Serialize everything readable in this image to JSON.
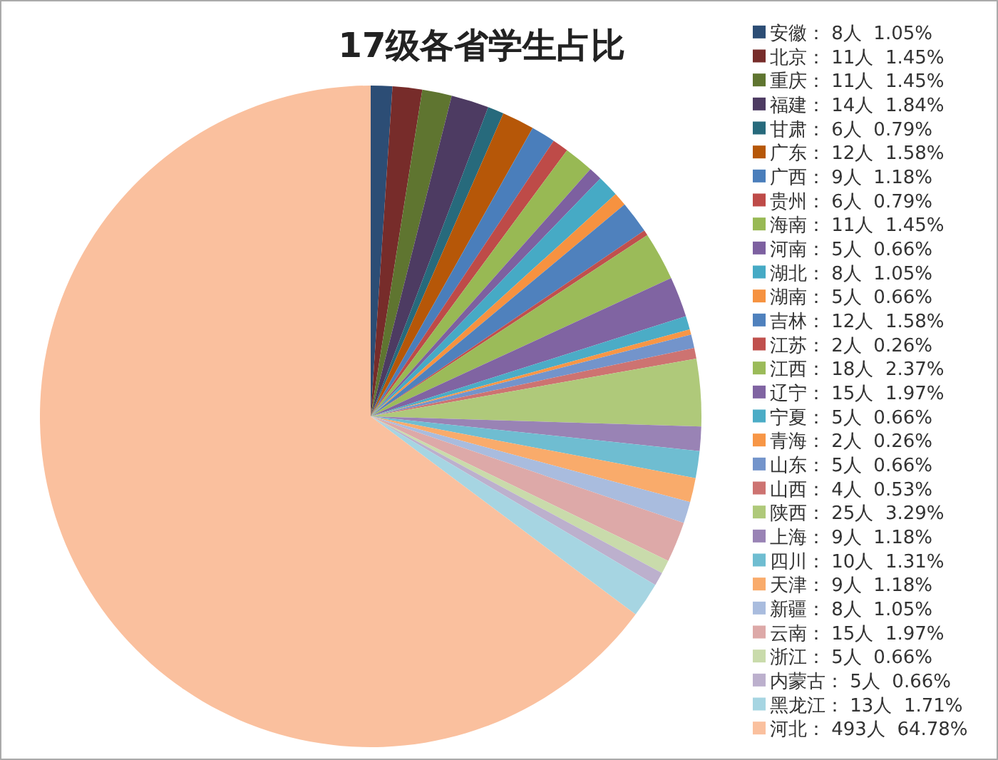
{
  "chart_data": {
    "type": "pie",
    "title": "17级各省学生占比",
    "categories": [
      "安徽",
      "北京",
      "重庆",
      "福建",
      "甘肃",
      "广东",
      "广西",
      "贵州",
      "海南",
      "河南",
      "湖北",
      "湖南",
      "吉林",
      "江苏",
      "江西",
      "辽宁",
      "宁夏",
      "青海",
      "山东",
      "山西",
      "陕西",
      "上海",
      "四川",
      "天津",
      "新疆",
      "云南",
      "浙江",
      "内蒙古",
      "黑龙江",
      "河北"
    ],
    "values": [
      8,
      11,
      11,
      14,
      6,
      12,
      9,
      6,
      11,
      5,
      8,
      5,
      12,
      2,
      18,
      15,
      5,
      2,
      5,
      4,
      25,
      9,
      10,
      9,
      8,
      15,
      5,
      5,
      13,
      493
    ],
    "value_labels": [
      "8人  1.05%",
      "11人  1.45%",
      "11人  1.45%",
      "14人  1.84%",
      "6人  0.79%",
      "12人  1.58%",
      "9人  1.18%",
      "6人  0.79%",
      "11人  1.45%",
      "5人  0.66%",
      "8人  1.05%",
      "5人  0.66%",
      "12人  1.58%",
      "2人  0.26%",
      "18人  2.37%",
      "15人  1.97%",
      "5人  0.66%",
      "2人  0.26%",
      "5人  0.66%",
      "4人  0.53%",
      "25人  3.29%",
      "9人  1.18%",
      "10人  1.31%",
      "9人  1.18%",
      "8人  1.05%",
      "15人  1.97%",
      "5人  0.66%",
      "5人  0.66%",
      "13人  1.71%",
      "493人  64.78%"
    ],
    "colors": [
      "#2c4d75",
      "#772c2a",
      "#5f7530",
      "#4d3b62",
      "#276a7c",
      "#b65708",
      "#4a7ebb",
      "#be4b48",
      "#98b954",
      "#7d60a0",
      "#46aac5",
      "#f69240",
      "#4f81bd",
      "#c0504d",
      "#9bbb59",
      "#8064a2",
      "#4bacc6",
      "#f79646",
      "#7394cb",
      "#cd7371",
      "#afc97a",
      "#9983b5",
      "#6fbdd1",
      "#f9ab6b",
      "#a9bcde",
      "#dda9a8",
      "#c9dbab",
      "#bcb0cd",
      "#a6d5e2",
      "#fac09e"
    ],
    "legend": "right"
  }
}
